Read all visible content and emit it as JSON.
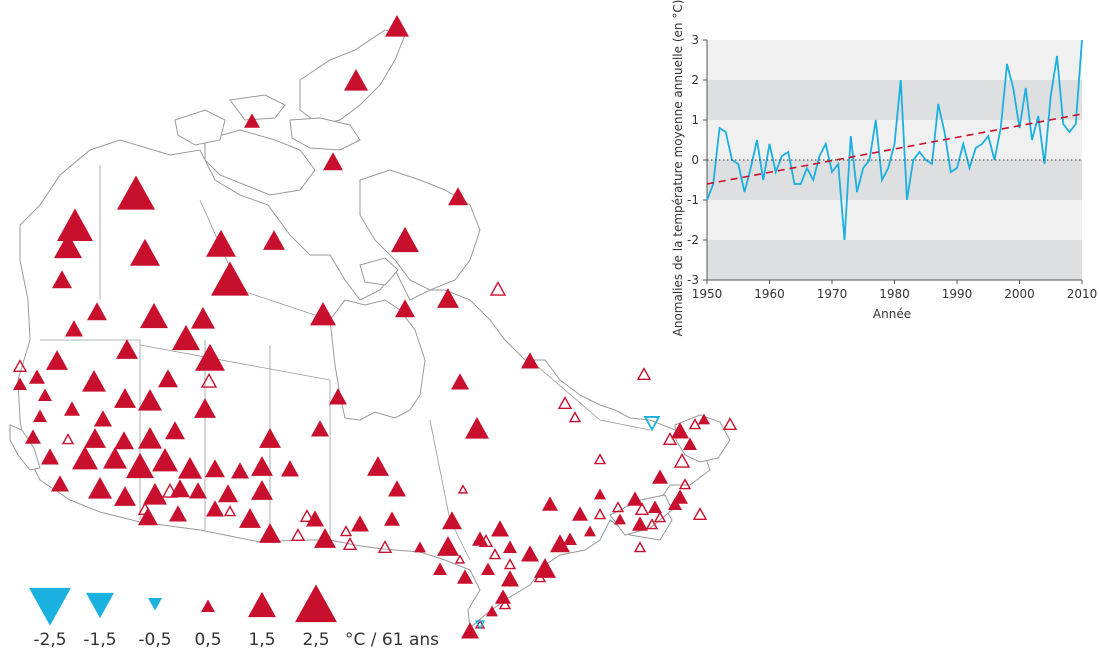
{
  "map": {
    "colors": {
      "warming": "#c8102e",
      "cooling": "#1ab0df",
      "land": "#ffffff",
      "border": "#9a9a9a"
    }
  },
  "chart_data": {
    "type": "line",
    "title": "",
    "xlabel": "Année",
    "ylabel": "Anomalies de la température moyenne annuelle (en °C)",
    "xlim": [
      1950,
      2010
    ],
    "ylim": [
      -3,
      3
    ],
    "xticks": [
      "1950",
      "1960",
      "1970",
      "1980",
      "1990",
      "2000",
      "2010"
    ],
    "yticks": [
      "-3",
      "-2",
      "-1",
      "0",
      "1",
      "2",
      "3"
    ],
    "grid": "alternating gray bands",
    "series": [
      {
        "kind": "anomaly",
        "color": "#1ab0df",
        "x": [
          1950,
          1951,
          1952,
          1953,
          1954,
          1955,
          1956,
          1957,
          1958,
          1959,
          1960,
          1961,
          1962,
          1963,
          1964,
          1965,
          1966,
          1967,
          1968,
          1969,
          1970,
          1971,
          1972,
          1973,
          1974,
          1975,
          1976,
          1977,
          1978,
          1979,
          1980,
          1981,
          1982,
          1983,
          1984,
          1985,
          1986,
          1987,
          1988,
          1989,
          1990,
          1991,
          1992,
          1993,
          1994,
          1995,
          1996,
          1997,
          1998,
          1999,
          2000,
          2001,
          2002,
          2003,
          2004,
          2005,
          2006,
          2007,
          2008,
          2009,
          2010
        ],
        "values": [
          -1.0,
          -0.6,
          0.8,
          0.7,
          0.0,
          -0.1,
          -0.8,
          -0.2,
          0.5,
          -0.5,
          0.4,
          -0.3,
          0.1,
          0.2,
          -0.6,
          -0.6,
          -0.2,
          -0.5,
          0.1,
          0.4,
          -0.3,
          -0.1,
          -2.0,
          0.6,
          -0.8,
          -0.2,
          0.0,
          1.0,
          -0.5,
          -0.2,
          0.4,
          2.0,
          -1.0,
          0.0,
          0.2,
          0.0,
          -0.1,
          1.4,
          0.7,
          -0.3,
          -0.2,
          0.4,
          -0.2,
          0.3,
          0.4,
          0.6,
          0.0,
          0.8,
          2.4,
          1.8,
          0.8,
          1.8,
          0.5,
          1.1,
          -0.1,
          1.6,
          2.6,
          0.9,
          0.7,
          0.9,
          3.0
        ]
      },
      {
        "kind": "trend",
        "color": "#c8102e",
        "x": [
          1950,
          2010
        ],
        "values": [
          -0.6,
          1.15
        ]
      },
      {
        "kind": "zero-reference",
        "color": "#333333",
        "x": [
          1950,
          2010
        ],
        "values": [
          0,
          0
        ]
      }
    ]
  },
  "legend": {
    "unit_label": "°C / 61 ans",
    "items": [
      {
        "value": -2.5,
        "label": "-2,5",
        "color": "#1ab0df"
      },
      {
        "value": -1.5,
        "label": "-1,5",
        "color": "#1ab0df"
      },
      {
        "value": -0.5,
        "label": "-0,5",
        "color": "#1ab0df"
      },
      {
        "value": 0.5,
        "label": "0,5",
        "color": "#c8102e"
      },
      {
        "value": 1.5,
        "label": "1,5",
        "color": "#c8102e"
      },
      {
        "value": 2.5,
        "label": "2,5",
        "color": "#c8102e"
      }
    ]
  }
}
